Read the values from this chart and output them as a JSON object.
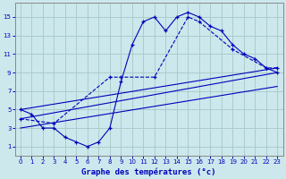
{
  "xlabel": "Graphe des températures (°c)",
  "bg_color": "#cce8ec",
  "grid_color": "#aacccc",
  "line_color": "#0000bb",
  "xlim": [
    -0.5,
    23.5
  ],
  "ylim": [
    0,
    16.5
  ],
  "xticks": [
    0,
    1,
    2,
    3,
    4,
    5,
    6,
    7,
    8,
    9,
    10,
    11,
    12,
    13,
    14,
    15,
    16,
    17,
    18,
    19,
    20,
    21,
    22,
    23
  ],
  "yticks": [
    1,
    3,
    5,
    7,
    9,
    11,
    13,
    15
  ],
  "line1_x": [
    0,
    1,
    2,
    3,
    4,
    5,
    6,
    7,
    8,
    9,
    10,
    11,
    12,
    13,
    14,
    15,
    16,
    17,
    18,
    19,
    20,
    21,
    22,
    23
  ],
  "line1_y": [
    5,
    4.5,
    3.0,
    3.0,
    2.0,
    1.5,
    1.0,
    1.5,
    3.0,
    8.0,
    12.0,
    14.5,
    15.0,
    13.5,
    15.0,
    15.5,
    15.0,
    14.0,
    13.5,
    12.0,
    11.0,
    10.5,
    9.5,
    9.0
  ],
  "line2_x": [
    0,
    3,
    8,
    9,
    12,
    15,
    16,
    19,
    22,
    23
  ],
  "line2_y": [
    4,
    3.5,
    8.5,
    8.5,
    8.5,
    15.0,
    14.5,
    11.5,
    9.5,
    9.5
  ],
  "line3_x": [
    0,
    23
  ],
  "line3_y": [
    5.0,
    9.5
  ],
  "line4_x": [
    0,
    23
  ],
  "line4_y": [
    4.0,
    9.0
  ],
  "line5_x": [
    0,
    23
  ],
  "line5_y": [
    3.0,
    7.5
  ]
}
